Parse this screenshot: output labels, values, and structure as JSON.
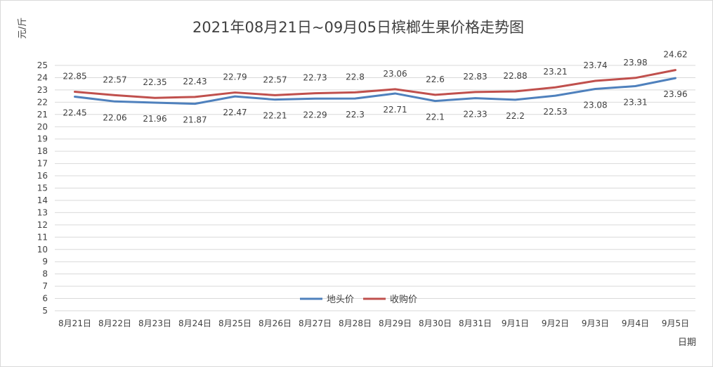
{
  "chart_data": {
    "type": "line",
    "title": "2021年08月21日~09月05日槟榔生果价格走势图",
    "xlabel": "日期",
    "ylabel": "元/斤",
    "categories": [
      "8月21日",
      "8月22日",
      "8月23日",
      "8月24日",
      "8月25日",
      "8月26日",
      "8月27日",
      "8月28日",
      "8月29日",
      "8月30日",
      "8月31日",
      "9月1日",
      "9月2日",
      "9月3日",
      "9月4日",
      "9月5日"
    ],
    "ylim": [
      5,
      25
    ],
    "yticks": [
      5,
      6,
      7,
      8,
      9,
      10,
      11,
      12,
      13,
      14,
      15,
      16,
      17,
      18,
      19,
      20,
      21,
      22,
      23,
      24,
      25
    ],
    "grid": true,
    "legend": "bottom-center",
    "series": [
      {
        "name": "地头价",
        "color": "#4f81bd",
        "values": [
          22.45,
          22.06,
          21.96,
          21.87,
          22.47,
          22.21,
          22.29,
          22.3,
          22.71,
          22.1,
          22.33,
          22.2,
          22.53,
          23.08,
          23.31,
          23.96
        ]
      },
      {
        "name": "收购价",
        "color": "#c0504d",
        "values": [
          22.85,
          22.57,
          22.35,
          22.43,
          22.79,
          22.57,
          22.73,
          22.8,
          23.06,
          22.6,
          22.83,
          22.88,
          23.21,
          23.74,
          23.98,
          24.62
        ]
      }
    ]
  }
}
